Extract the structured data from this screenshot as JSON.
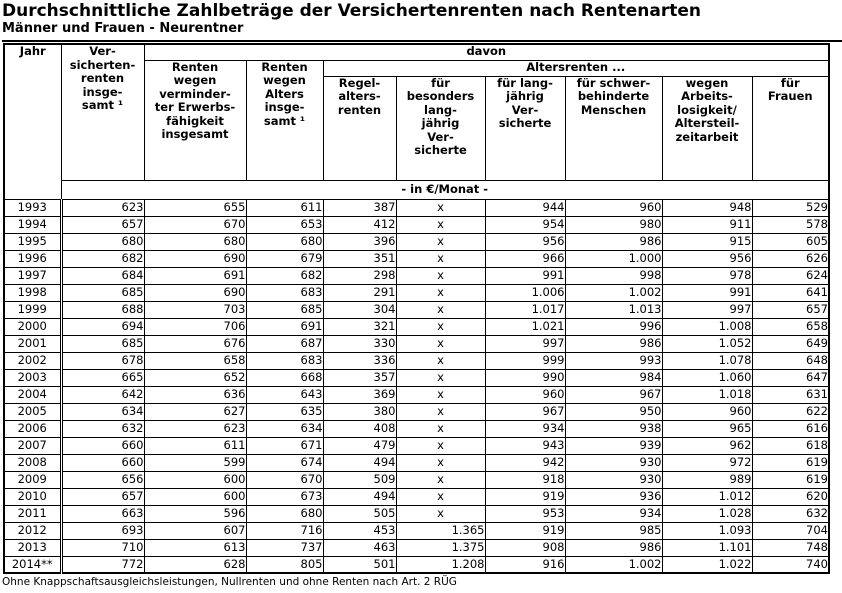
{
  "page": {
    "title": "Durchschnittliche Zahlbeträge der Versichertenrenten nach Rentenarten",
    "subtitle": "Männer und Frauen - Neurentner",
    "footnote": "Ohne Knappschaftsausgleichsleistungen, Nullrenten und ohne Renten nach Art. 2 RÜG"
  },
  "table": {
    "headers": {
      "jahr": "Jahr",
      "versichertenrenten": "Ver-\nsicherten-\nrenten\ninsge-\nsamt ¹",
      "davon": "davon",
      "erwerbsminderung": "Renten\nwegen\nverminder-\nter Erwerbs-\nfähigkeit\ninsgesamt",
      "alters_insgesamt": "Renten\nwegen\nAlters\ninsge-\nsamt ¹",
      "altersrenten": "Altersrenten ...",
      "regelaltersrenten": "Regel-\nalters-\nrenten",
      "besonders_langjaehrig": "für\nbesonders\nlang-\njährig\nVer-\nsicherte",
      "langjaehrig": "für lang-\njährig\nVer-\nsicherte",
      "schwerbehinderte": "für schwer-\nbehinderte\nMenschen",
      "arbeitslosigkeit": "wegen\nArbeits-\nlosigkeit/\nAltersteil-\nzeitarbeit",
      "frauen": "für\nFrauen"
    },
    "unit_label": "- in €/Monat -",
    "rows": [
      {
        "year": "1993",
        "values": [
          "623",
          "655",
          "611",
          "387",
          "x",
          "944",
          "960",
          "948",
          "529"
        ]
      },
      {
        "year": "1994",
        "values": [
          "657",
          "670",
          "653",
          "412",
          "x",
          "954",
          "980",
          "911",
          "578"
        ]
      },
      {
        "year": "1995",
        "values": [
          "680",
          "680",
          "680",
          "396",
          "x",
          "956",
          "986",
          "915",
          "605"
        ]
      },
      {
        "year": "1996",
        "values": [
          "682",
          "690",
          "679",
          "351",
          "x",
          "966",
          "1.000",
          "956",
          "626"
        ]
      },
      {
        "year": "1997",
        "values": [
          "684",
          "691",
          "682",
          "298",
          "x",
          "991",
          "998",
          "978",
          "624"
        ]
      },
      {
        "year": "1998",
        "values": [
          "685",
          "690",
          "683",
          "291",
          "x",
          "1.006",
          "1.002",
          "991",
          "641"
        ]
      },
      {
        "year": "1999",
        "values": [
          "688",
          "703",
          "685",
          "304",
          "x",
          "1.017",
          "1.013",
          "997",
          "657"
        ]
      },
      {
        "year": "2000",
        "values": [
          "694",
          "706",
          "691",
          "321",
          "x",
          "1.021",
          "996",
          "1.008",
          "658"
        ]
      },
      {
        "year": "2001",
        "values": [
          "685",
          "676",
          "687",
          "330",
          "x",
          "997",
          "986",
          "1.052",
          "649"
        ]
      },
      {
        "year": "2002",
        "values": [
          "678",
          "658",
          "683",
          "336",
          "x",
          "999",
          "993",
          "1.078",
          "648"
        ]
      },
      {
        "year": "2003",
        "values": [
          "665",
          "652",
          "668",
          "357",
          "x",
          "990",
          "984",
          "1.060",
          "647"
        ]
      },
      {
        "year": "2004",
        "values": [
          "642",
          "636",
          "643",
          "369",
          "x",
          "960",
          "967",
          "1.018",
          "631"
        ]
      },
      {
        "year": "2005",
        "values": [
          "634",
          "627",
          "635",
          "380",
          "x",
          "967",
          "950",
          "960",
          "622"
        ]
      },
      {
        "year": "2006",
        "values": [
          "632",
          "623",
          "634",
          "408",
          "x",
          "934",
          "938",
          "965",
          "616"
        ]
      },
      {
        "year": "2007",
        "values": [
          "660",
          "611",
          "671",
          "479",
          "x",
          "943",
          "939",
          "962",
          "618"
        ]
      },
      {
        "year": "2008",
        "values": [
          "660",
          "599",
          "674",
          "494",
          "x",
          "942",
          "930",
          "972",
          "619"
        ]
      },
      {
        "year": "2009",
        "values": [
          "656",
          "600",
          "670",
          "509",
          "x",
          "918",
          "930",
          "989",
          "619"
        ]
      },
      {
        "year": "2010",
        "values": [
          "657",
          "600",
          "673",
          "494",
          "x",
          "919",
          "936",
          "1.012",
          "620"
        ]
      },
      {
        "year": "2011",
        "values": [
          "663",
          "596",
          "680",
          "505",
          "x",
          "953",
          "934",
          "1.028",
          "632"
        ]
      },
      {
        "year": "2012",
        "values": [
          "693",
          "607",
          "716",
          "453",
          "1.365",
          "919",
          "985",
          "1.093",
          "704"
        ]
      },
      {
        "year": "2013",
        "values": [
          "710",
          "613",
          "737",
          "463",
          "1.375",
          "908",
          "986",
          "1.101",
          "748"
        ]
      },
      {
        "year": "2014**",
        "values": [
          "772",
          "628",
          "805",
          "501",
          "1.208",
          "916",
          "1.002",
          "1.022",
          "740"
        ]
      }
    ]
  }
}
